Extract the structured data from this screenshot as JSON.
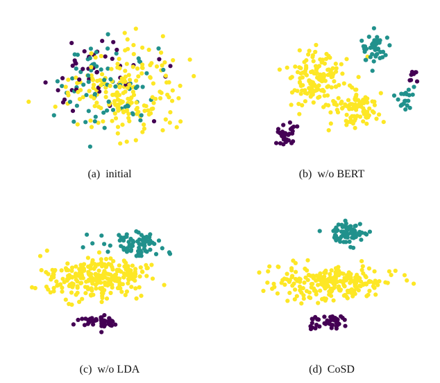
{
  "colors": {
    "class_0": "#440154",
    "class_1": "#21918c",
    "class_2": "#fde725"
  },
  "chart_data": [
    {
      "type": "scatter",
      "caption": "(a)  initial",
      "axes_visible": false,
      "clusters": [
        {
          "class": "class_2",
          "cx": 0.57,
          "cy": 0.57,
          "sx": 0.25,
          "sy": 0.25,
          "n": 190
        },
        {
          "class": "class_1",
          "cx": 0.48,
          "cy": 0.5,
          "sx": 0.26,
          "sy": 0.25,
          "n": 75
        },
        {
          "class": "class_0",
          "cx": 0.48,
          "cy": 0.45,
          "sx": 0.26,
          "sy": 0.25,
          "n": 42
        }
      ]
    },
    {
      "type": "scatter",
      "caption": "(b)  w/o BERT",
      "axes_visible": false,
      "clusters": [
        {
          "class": "class_2",
          "cx": 0.43,
          "cy": 0.47,
          "sx": 0.15,
          "sy": 0.15,
          "n": 140
        },
        {
          "class": "class_2",
          "cx": 0.62,
          "cy": 0.66,
          "sx": 0.12,
          "sy": 0.11,
          "n": 90
        },
        {
          "class": "class_1",
          "cx": 0.72,
          "cy": 0.27,
          "sx": 0.07,
          "sy": 0.08,
          "n": 45
        },
        {
          "class": "class_1",
          "cx": 0.86,
          "cy": 0.6,
          "sx": 0.06,
          "sy": 0.1,
          "n": 20
        },
        {
          "class": "class_0",
          "cx": 0.27,
          "cy": 0.83,
          "sx": 0.05,
          "sy": 0.06,
          "n": 32
        },
        {
          "class": "class_0",
          "cx": 0.92,
          "cy": 0.47,
          "sx": 0.03,
          "sy": 0.05,
          "n": 8
        }
      ]
    },
    {
      "type": "scatter",
      "caption": "(c)  w/o LDA",
      "axes_visible": false,
      "clusters": [
        {
          "class": "class_2",
          "cx": 0.45,
          "cy": 0.52,
          "sx": 0.24,
          "sy": 0.12,
          "n": 270
        },
        {
          "class": "class_1",
          "cx": 0.65,
          "cy": 0.3,
          "sx": 0.15,
          "sy": 0.07,
          "n": 75
        },
        {
          "class": "class_0",
          "cx": 0.45,
          "cy": 0.8,
          "sx": 0.08,
          "sy": 0.035,
          "n": 45
        }
      ]
    },
    {
      "type": "scatter",
      "caption": "(d)  CoSD",
      "axes_visible": false,
      "clusters": [
        {
          "class": "class_2",
          "cx": 0.5,
          "cy": 0.55,
          "sx": 0.26,
          "sy": 0.1,
          "n": 240
        },
        {
          "class": "class_1",
          "cx": 0.58,
          "cy": 0.24,
          "sx": 0.09,
          "sy": 0.07,
          "n": 75
        },
        {
          "class": "class_0",
          "cx": 0.48,
          "cy": 0.8,
          "sx": 0.09,
          "sy": 0.045,
          "n": 45
        }
      ]
    }
  ]
}
